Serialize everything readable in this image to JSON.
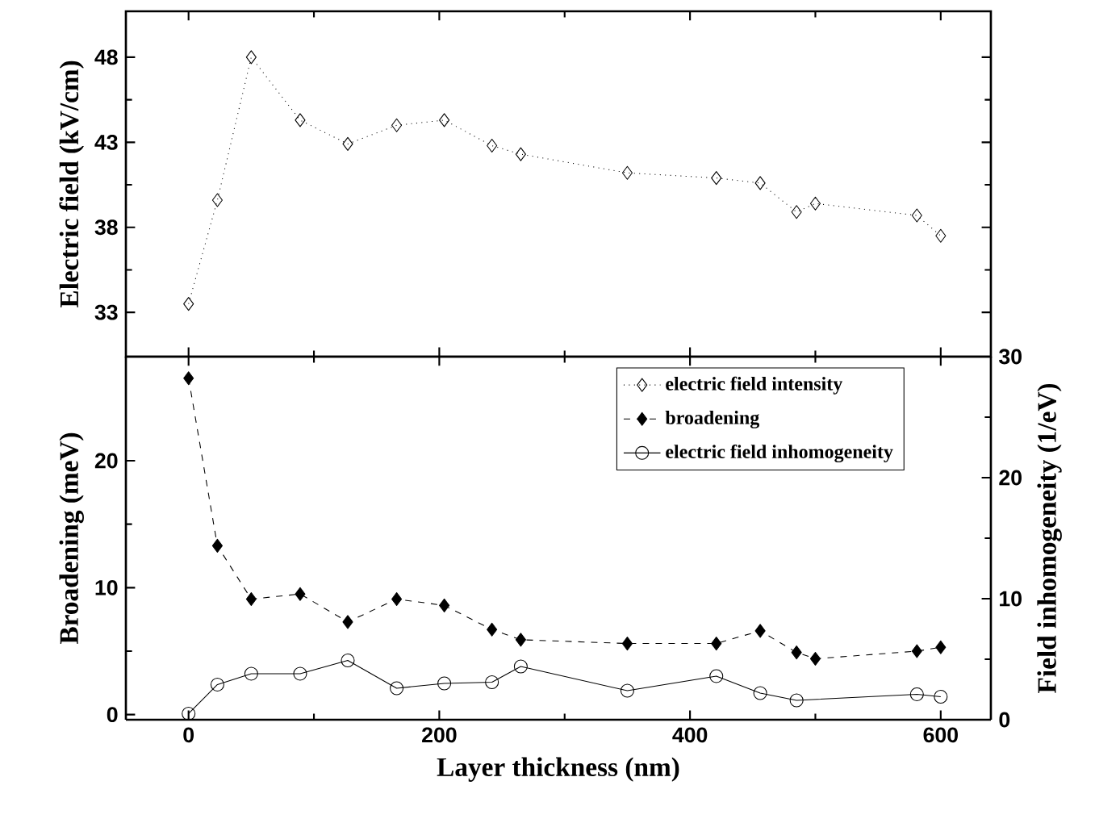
{
  "chart_data": [
    {
      "type": "line",
      "ylabel": "Electric field (kV/cm)",
      "x": [
        0,
        23,
        50,
        89,
        127,
        166,
        204,
        242,
        265,
        350,
        421,
        456,
        485,
        500,
        581,
        600
      ],
      "xlim": [
        -50,
        640
      ],
      "xticks": [
        0,
        200,
        400,
        600
      ],
      "ylim": [
        30.4,
        50.7
      ],
      "yticks": [
        33,
        38,
        43,
        48
      ],
      "tick_labels": "y",
      "grid": false,
      "series": [
        {
          "name": "electric field intensity",
          "color": "#000000",
          "marker": "diamond",
          "line_style": "dotted",
          "values": [
            33.5,
            39.6,
            48,
            44.3,
            42.9,
            44.0,
            44.3,
            42.8,
            42.3,
            41.2,
            40.9,
            40.6,
            38.9,
            39.4,
            38.7,
            37.5
          ]
        }
      ]
    },
    {
      "type": "line",
      "xlabel": "Layer thickness (nm)",
      "ylabel": "Broadening (meV)",
      "y2label": "Field inhomogeneity (1/eV)",
      "x": [
        0,
        23,
        50,
        89,
        127,
        166,
        204,
        242,
        265,
        350,
        421,
        456,
        485,
        500,
        581,
        600
      ],
      "xlim": [
        -50,
        640
      ],
      "xticks": [
        0,
        200,
        400,
        600
      ],
      "ylim": [
        -0.4,
        28.2
      ],
      "yticks": [
        0,
        10,
        20
      ],
      "y2lim": [
        0,
        30
      ],
      "y2ticks": [
        0,
        10,
        20,
        30
      ],
      "legend": "top right",
      "grid": false,
      "series": [
        {
          "name": "broadening",
          "color": "#000000",
          "marker": "diamond",
          "line_style": "dashed",
          "values": [
            26.5,
            13.3,
            9.1,
            9.5,
            7.3,
            9.1,
            8.6,
            6.7,
            5.9,
            5.6,
            5.6,
            6.6,
            4.9,
            4.4,
            5.0,
            5.3
          ]
        },
        {
          "name": "electric field inhomogeneity",
          "color": "#000000",
          "marker": "circle",
          "line_style": "solid",
          "axis": "y2",
          "x": [
            0,
            23,
            50,
            89,
            127,
            166,
            204,
            242,
            265,
            350,
            421,
            456,
            485,
            581,
            600
          ],
          "values": [
            0.5,
            2.9,
            3.8,
            3.8,
            4.9,
            2.6,
            3.0,
            3.1,
            4.4,
            2.4,
            3.6,
            2.2,
            1.6,
            2.1,
            1.9
          ]
        }
      ]
    }
  ]
}
